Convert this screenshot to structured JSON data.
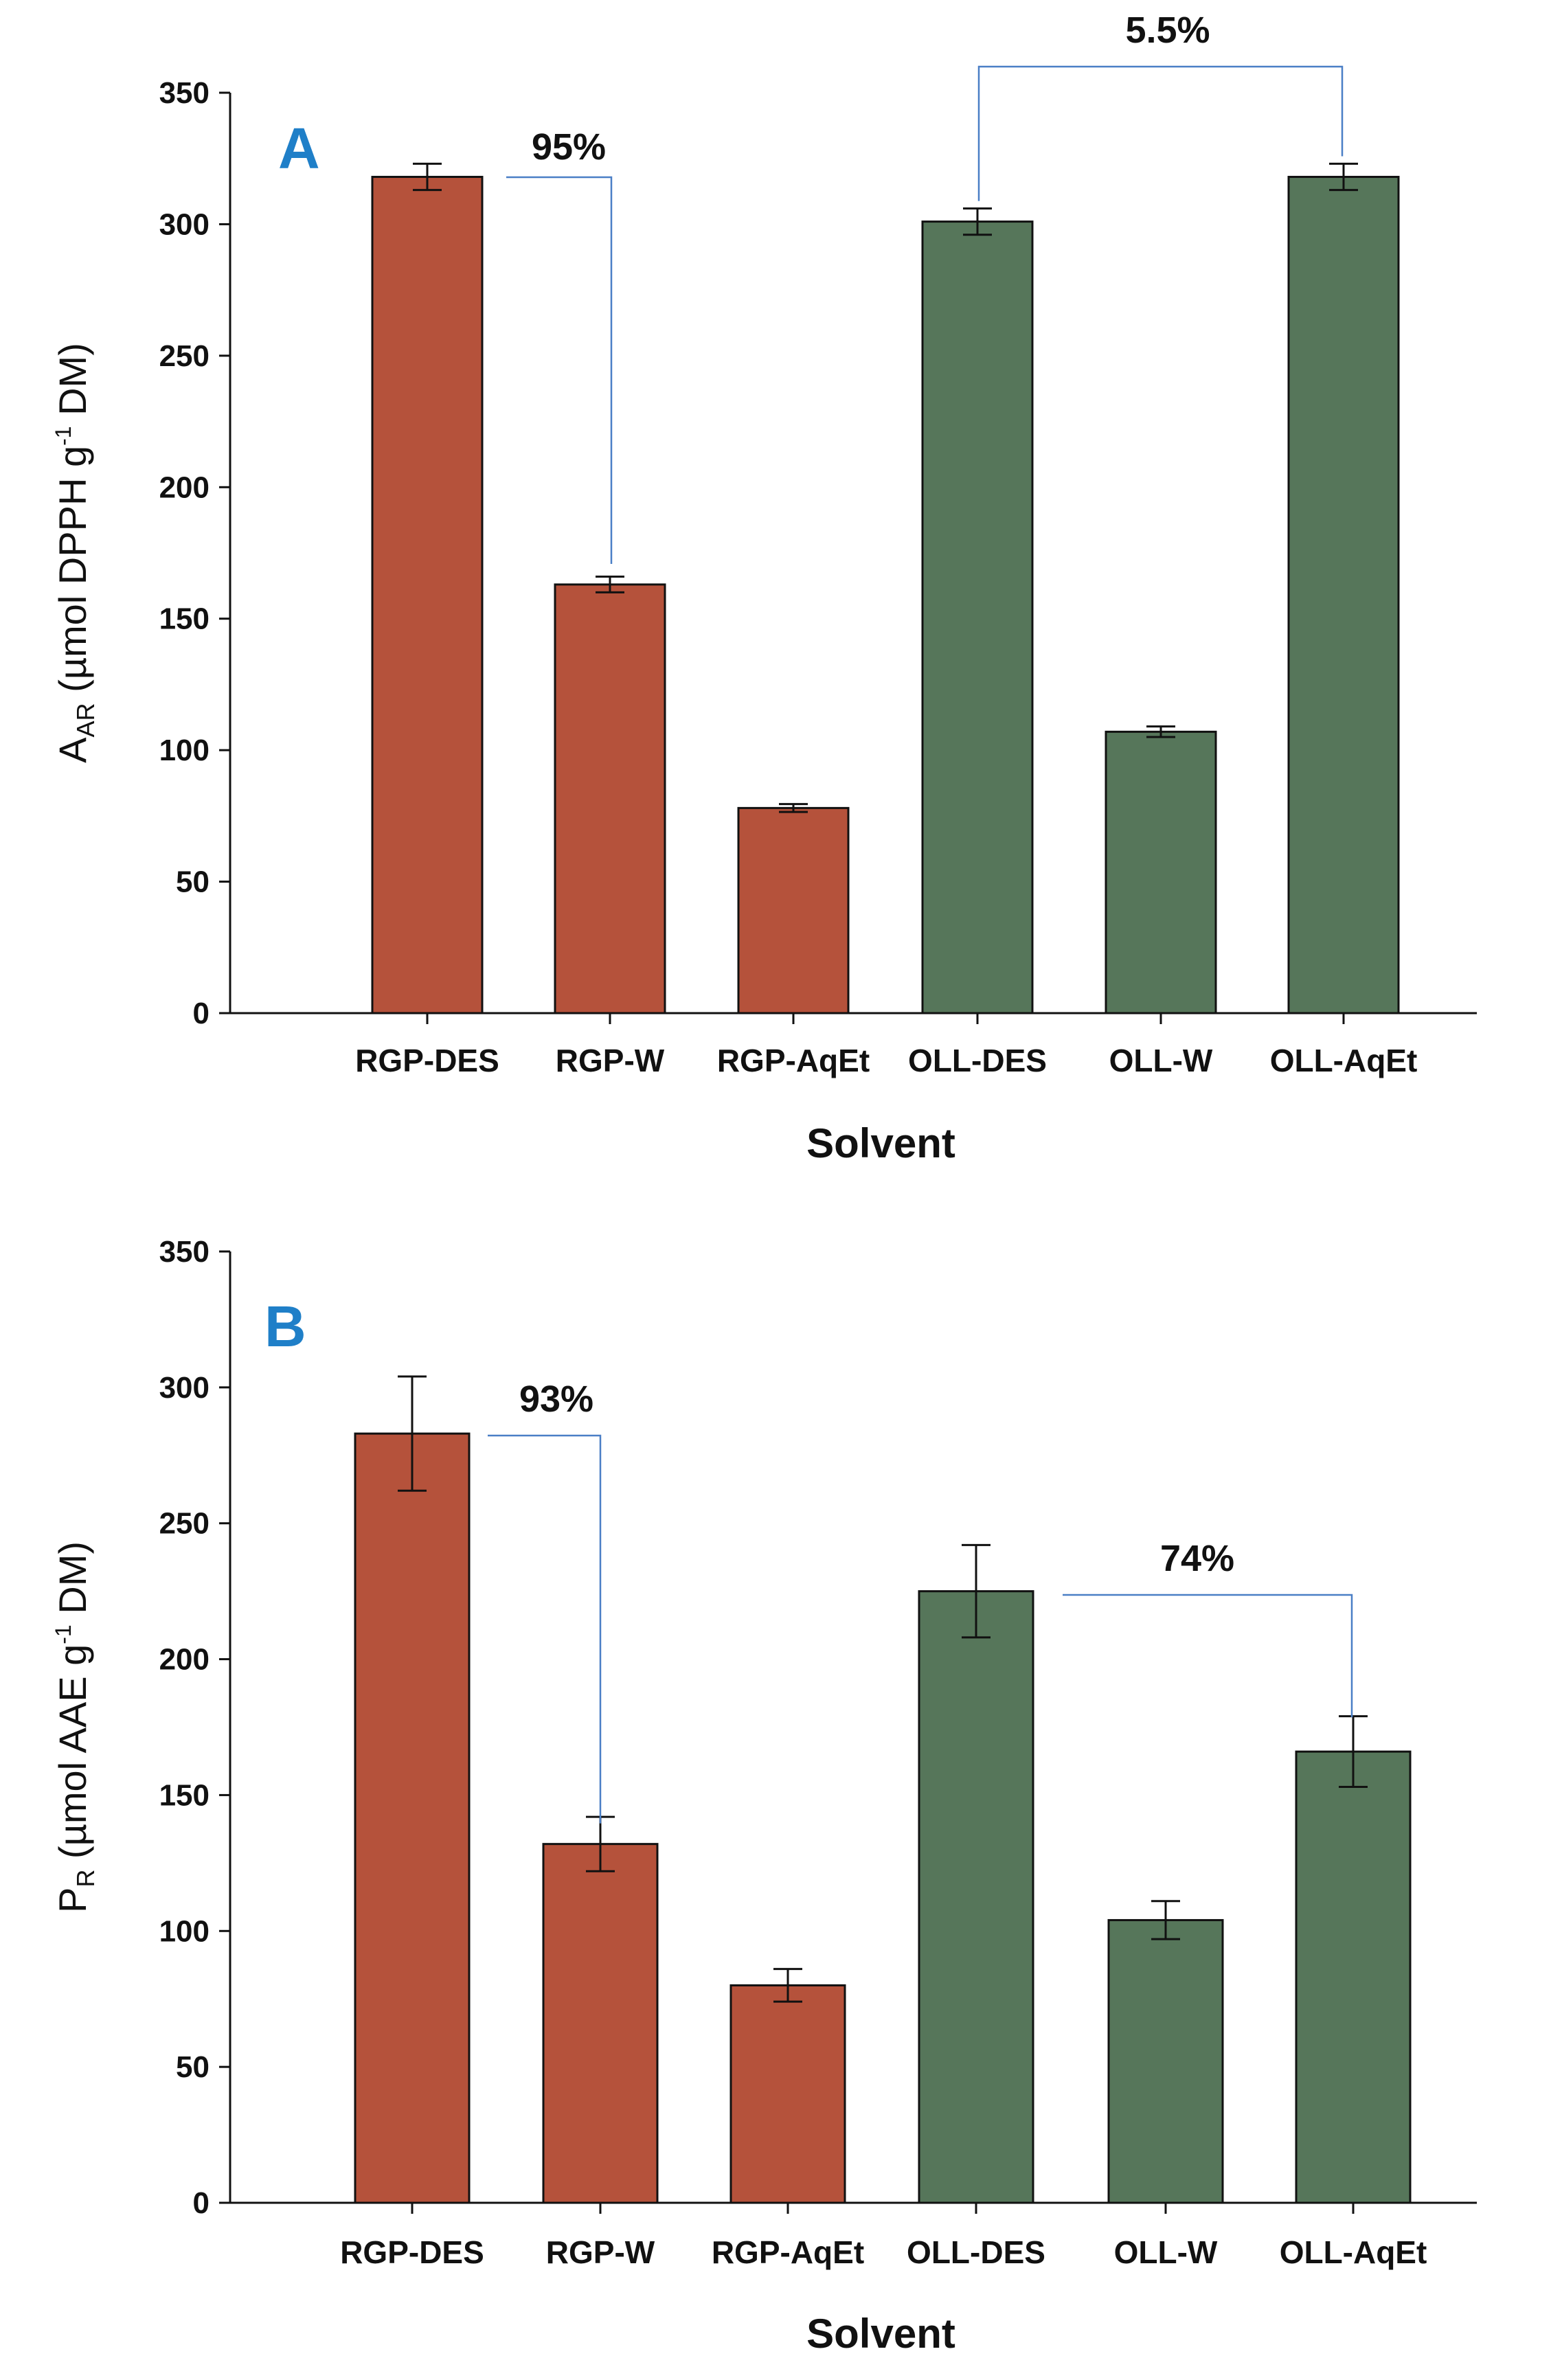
{
  "chart_data": [
    {
      "panel_label": "A",
      "type": "bar",
      "categories": [
        "RGP-DES",
        "RGP-W",
        "RGP-AqEt",
        "OLL-DES",
        "OLL-W",
        "OLL-AqEt"
      ],
      "values": [
        318,
        163,
        78,
        301,
        107,
        318
      ],
      "errors": [
        5,
        3,
        1.5,
        5,
        2,
        5
      ],
      "colors": [
        "#b5523b",
        "#b5523b",
        "#b5523b",
        "#56765a",
        "#56765a",
        "#56765a"
      ],
      "ylim": [
        0,
        350
      ],
      "yticks": [
        0,
        50,
        100,
        150,
        200,
        250,
        300,
        350
      ],
      "xlabel": "Solvent",
      "ylabel": {
        "main": "A",
        "sub": "AR",
        "mid": " (µmol DPPH g",
        "sup": "-1",
        "end": " DM)"
      },
      "annotations": [
        {
          "text": "95%",
          "from": 0,
          "to": 1,
          "level": 318
        },
        {
          "text": "5.5%",
          "from": 3,
          "to": 5,
          "level": 345
        }
      ]
    },
    {
      "panel_label": "B",
      "type": "bar",
      "categories": [
        "RGP-DES",
        "RGP-W",
        "RGP-AqEt",
        "OLL-DES",
        "OLL-W",
        "OLL-AqEt"
      ],
      "values": [
        283,
        132,
        80,
        225,
        104,
        166
      ],
      "errors": [
        21,
        10,
        6,
        17,
        7,
        13
      ],
      "colors": [
        "#b5523b",
        "#b5523b",
        "#b5523b",
        "#56765a",
        "#56765a",
        "#56765a"
      ],
      "ylim": [
        0,
        350
      ],
      "yticks": [
        0,
        50,
        100,
        150,
        200,
        250,
        300,
        350
      ],
      "xlabel": "Solvent",
      "ylabel": {
        "main": "P",
        "sub": "R",
        "mid": " (µmol AAE g",
        "sup": "-1",
        "end": " DM)"
      },
      "annotations": [
        {
          "text": "93%",
          "from": 0,
          "to": 1,
          "level": 283
        },
        {
          "text": "74%",
          "from": 3,
          "to": 5,
          "level": 225
        }
      ]
    }
  ]
}
